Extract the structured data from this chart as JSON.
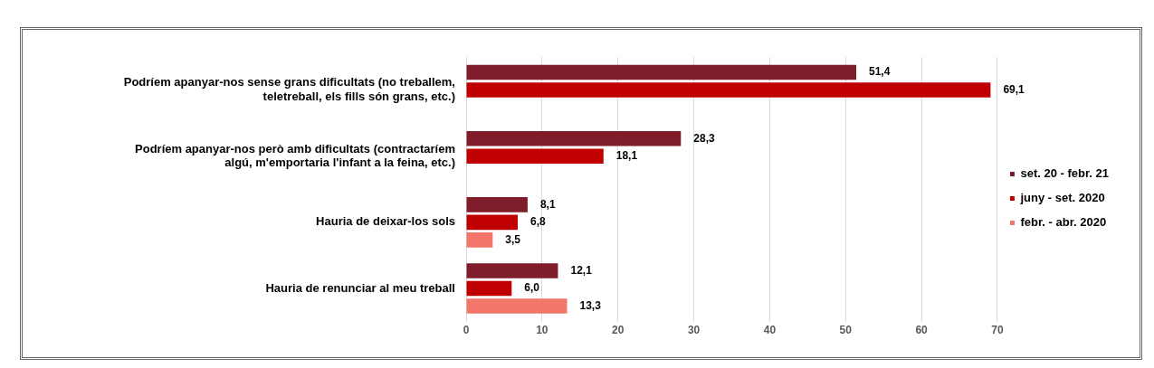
{
  "chart_data": {
    "type": "bar",
    "orientation": "horizontal",
    "categories": [
      "Podríem apanyar-nos sense grans dificultats (no treballem, teletreball, els fills són grans, etc.)",
      "Podríem apanyar-nos però amb dificultats (contractaríem algú, m'emportaria l'infant a la feina, etc.)",
      "Hauria de deixar-los sols",
      "Hauria de renunciar al meu treball"
    ],
    "series": [
      {
        "name": "set. 20 - febr. 21",
        "color": "#7f1d2a",
        "values": [
          51.4,
          28.3,
          8.1,
          12.1
        ],
        "value_labels": [
          "51,4",
          "28,3",
          "8,1",
          "12,1"
        ]
      },
      {
        "name": "juny - set. 2020",
        "color": "#c00000",
        "values": [
          69.1,
          18.1,
          6.8,
          6.0
        ],
        "value_labels": [
          "69,1",
          "18,1",
          "6,8",
          "6,0"
        ]
      },
      {
        "name": "febr. - abr. 2020",
        "color": "#f2776a",
        "values": [
          null,
          null,
          3.5,
          13.3
        ],
        "value_labels": [
          null,
          null,
          "3,5",
          "13,3"
        ]
      }
    ],
    "xlim": [
      0,
      70
    ],
    "xticks": [
      0,
      10,
      20,
      30,
      40,
      50,
      60,
      70
    ],
    "grid": "x",
    "legend": "right"
  }
}
